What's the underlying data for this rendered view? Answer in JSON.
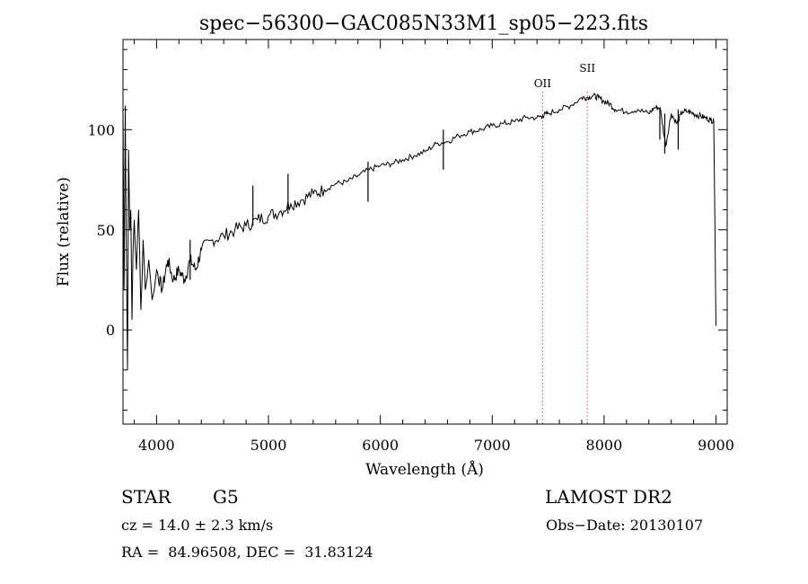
{
  "chart_data": {
    "type": "line",
    "title": "spec−56300−GAC085N33M1_sp05−223.fits",
    "xlabel": "Wavelength (Å)",
    "ylabel": "Flux (relative)",
    "xlim": [
      3700,
      9100
    ],
    "ylim": [
      -47,
      145
    ],
    "xticks": [
      4000,
      5000,
      6000,
      7000,
      8000,
      9000
    ],
    "yticks": [
      0,
      50,
      100
    ],
    "grid": false,
    "line_color": "#000000",
    "marker_color": "#cc4444",
    "series": [
      {
        "x": [
          3700,
          3710,
          3720,
          3730,
          3740,
          3750,
          3760,
          3770,
          3780,
          3790,
          3800,
          3820,
          3840,
          3860,
          3880,
          3900,
          3930,
          3960,
          4000,
          4050,
          4100,
          4150,
          4200,
          4250,
          4300,
          4350,
          4400,
          4500,
          4600,
          4700,
          4800,
          4900,
          5000,
          5100,
          5200,
          5300,
          5400,
          5500,
          5600,
          5700,
          5800,
          5900,
          6000,
          6100,
          6200,
          6300,
          6400,
          6500,
          6600,
          6700,
          6800,
          6900,
          7000,
          7100,
          7200,
          7300,
          7400,
          7450,
          7500,
          7600,
          7700,
          7800,
          7850,
          7900,
          7950,
          8000,
          8050,
          8100,
          8200,
          8300,
          8400,
          8450,
          8500,
          8550,
          8600,
          8650,
          8700,
          8750,
          8800,
          8850,
          8900,
          8950,
          8980,
          9000
        ],
        "y": [
          110,
          20,
          112,
          40,
          -20,
          90,
          50,
          60,
          5,
          40,
          55,
          30,
          60,
          10,
          45,
          20,
          35,
          15,
          30,
          20,
          35,
          25,
          30,
          25,
          35,
          30,
          40,
          45,
          47,
          50,
          52,
          55,
          57,
          59,
          63,
          65,
          68,
          70,
          73,
          74,
          77,
          80,
          82,
          83,
          85,
          87,
          89,
          93,
          94,
          97,
          99,
          100,
          102,
          103,
          104,
          106,
          106,
          107,
          108,
          110,
          112,
          116,
          116,
          117,
          116,
          114,
          113,
          110,
          109,
          110,
          108,
          111,
          111,
          92,
          108,
          103,
          109,
          109,
          108,
          107,
          106,
          105,
          104,
          2
        ],
        "absorption_lines": [
          {
            "x": 8498,
            "y": 95
          },
          {
            "x": 8542,
            "y": 88
          },
          {
            "x": 8662,
            "y": 90
          },
          {
            "x": 6563,
            "y": 80
          },
          {
            "x": 5890,
            "y": 64
          },
          {
            "x": 5175,
            "y": 58
          },
          {
            "x": 4861,
            "y": 52
          },
          {
            "x": 4300,
            "y": 25
          }
        ]
      }
    ],
    "annotations": [
      {
        "label": "OII",
        "x": 7450
      },
      {
        "label": "SII",
        "x": 7850
      }
    ]
  },
  "info": {
    "class": "STAR",
    "subclass": "G5",
    "survey": "LAMOST DR2",
    "redshift_text": "cz = 14.0 ± 2.3 km/s",
    "obs_date": "Obs−Date: 20130107",
    "coords": "RA =  84.96508, DEC =  31.83124"
  }
}
